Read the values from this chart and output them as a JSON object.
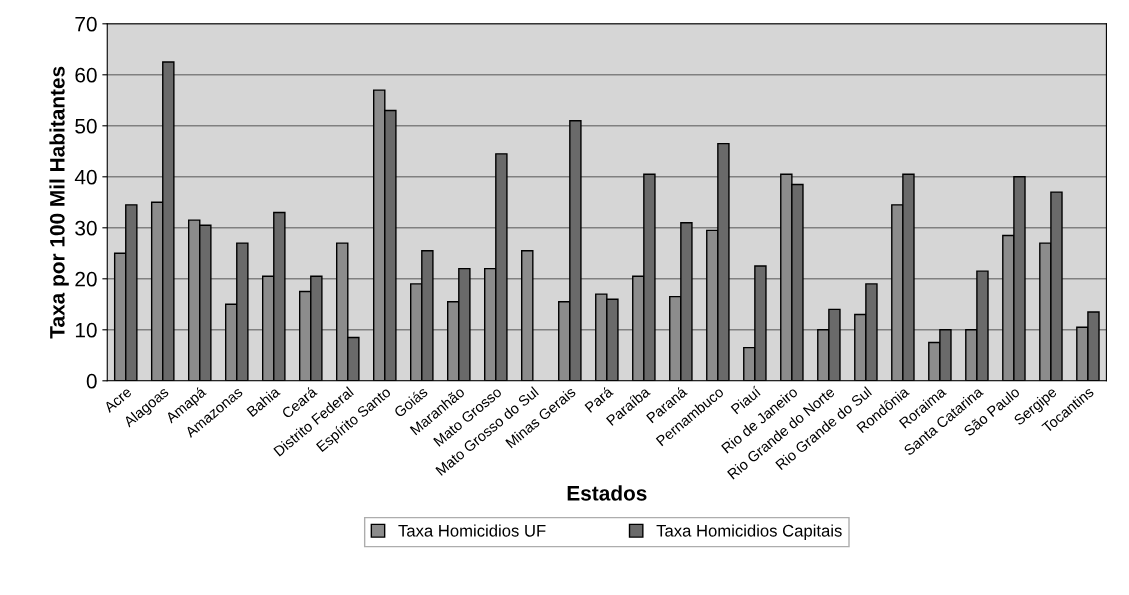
{
  "chart_data": {
    "type": "bar",
    "xlabel": "Estados",
    "ylabel": "Taxa por 100 Mil Habitantes",
    "categories": [
      "Acre",
      "Alagoas",
      "Amapá",
      "Amazonas",
      "Bahia",
      "Ceará",
      "Distrito Federal",
      "Espírito Santo",
      "Goiás",
      "Maranhão",
      "Mato Grosso",
      "Mato Grosso do Sul",
      "Minas Gerais",
      "Pará",
      "Paraíba",
      "Paraná",
      "Pernambuco",
      "Piauí",
      "Rio de Janeiro",
      "Rio Grande do Norte",
      "Rio Grande do Sul",
      "Rondônia",
      "Roraima",
      "Santa Catarina",
      "São Paulo",
      "Sergipe",
      "Tocantins"
    ],
    "series": [
      {
        "name": "Taxa Homicidios UF",
        "color": "#8c8c8c",
        "values": [
          25,
          35,
          31.5,
          15,
          20.5,
          17.5,
          27,
          57,
          19,
          15.5,
          22,
          25.5,
          15.5,
          17,
          20.5,
          16.5,
          29.5,
          6.5,
          40.5,
          10,
          13,
          34.5,
          7.5,
          10,
          28.5,
          27,
          10.5
        ]
      },
      {
        "name": "Taxa Homicidios Capitais",
        "color": "#6a6a6a",
        "values": [
          34.5,
          62.5,
          30.5,
          27,
          33,
          20.5,
          8.5,
          53,
          25.5,
          22,
          44.5,
          null,
          51,
          16,
          40.5,
          31,
          46.5,
          22.5,
          38.5,
          14,
          19,
          40.5,
          10,
          21.5,
          40,
          37,
          13.5
        ]
      }
    ],
    "ylim": [
      0,
      70
    ],
    "yticks": [
      0,
      10,
      20,
      30,
      40,
      50,
      60,
      70
    ],
    "grid": "y",
    "legend": "bottom"
  }
}
